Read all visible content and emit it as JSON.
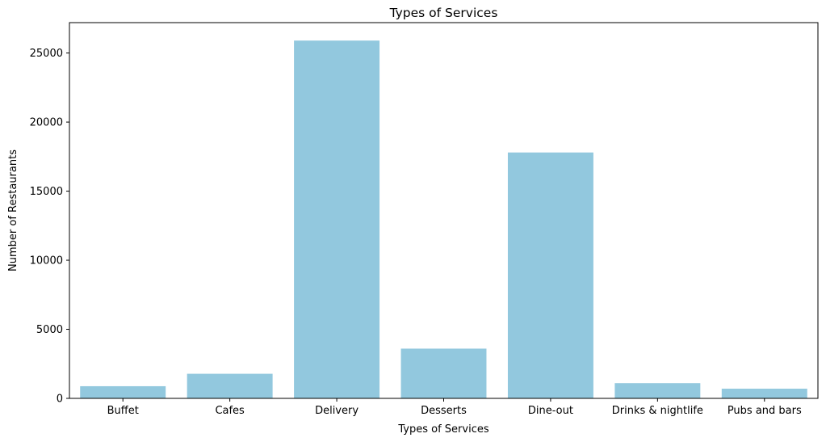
{
  "chart_data": {
    "type": "bar",
    "title": "Types of Services",
    "xlabel": "Types of Services",
    "ylabel": "Number of Restaurants",
    "categories": [
      "Buffet",
      "Cafes",
      "Delivery",
      "Desserts",
      "Dine-out",
      "Drinks & nightlife",
      "Pubs and bars"
    ],
    "values": [
      880,
      1780,
      25900,
      3600,
      17800,
      1100,
      700
    ],
    "ylim": [
      0,
      27200
    ],
    "yticks": [
      0,
      5000,
      10000,
      15000,
      20000,
      25000
    ],
    "grid": false,
    "bar_color": "#92c8de"
  }
}
